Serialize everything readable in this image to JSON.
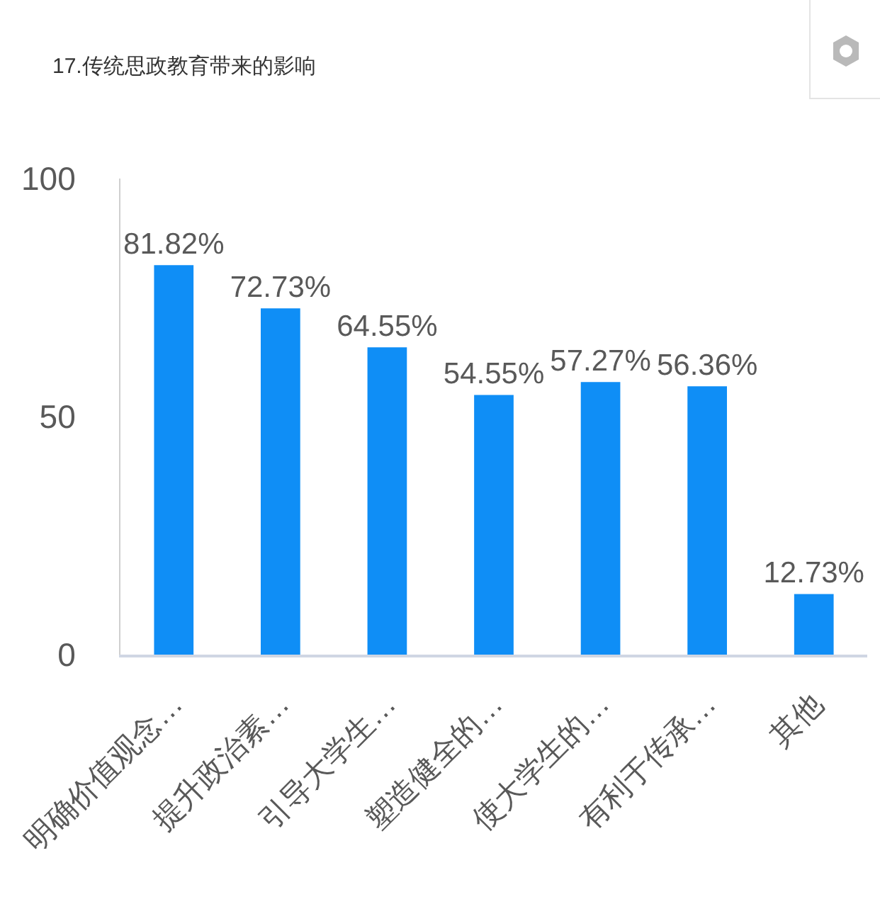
{
  "chart_data": {
    "type": "bar",
    "title": "17.传统思政教育带来的影响",
    "categories": [
      "明确价值观念…",
      "提升政治素…",
      "引导大学生…",
      "塑造健全的…",
      "使大学生的…",
      "有利于传承…",
      "其他"
    ],
    "values": [
      81.82,
      72.73,
      64.55,
      54.55,
      57.27,
      56.36,
      12.73
    ],
    "value_labels": [
      "81.82%",
      "72.73%",
      "64.55%",
      "54.55%",
      "57.27%",
      "56.36%",
      "12.73%"
    ],
    "color": "#0f8ef6",
    "ylim": [
      0,
      100
    ],
    "yticks": [
      0,
      50,
      100
    ],
    "grid": false,
    "legend": false
  }
}
